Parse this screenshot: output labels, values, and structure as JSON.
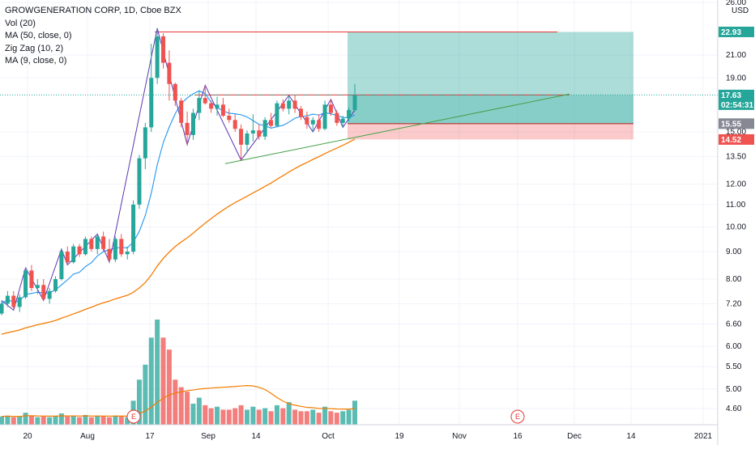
{
  "legend": {
    "title": "GROWGENERATION CORP, 1D, Cboe BZX",
    "indicators": [
      "Vol (20)",
      "MA (50, close, 0)",
      "Zig Zag (10, 2)",
      "MA (9, close, 0)"
    ]
  },
  "price_axis": {
    "unit": "USD",
    "ticks": [
      "26.00",
      "21.00",
      "19.00",
      "15.00",
      "13.50",
      "12.00",
      "11.00",
      "10.00",
      "9.00",
      "8.00",
      "7.20",
      "6.60",
      "6.00",
      "5.50",
      "5.00",
      "4.60"
    ]
  },
  "price_tags": [
    {
      "label": "22.93",
      "color": "#26a69a"
    },
    {
      "label": "17.63",
      "color": "#26a69a"
    },
    {
      "label": "02:54:31",
      "color": "#26a69a"
    },
    {
      "label": "15.55",
      "color": "#868993"
    },
    {
      "label": "14.52",
      "color": "#ef5350"
    }
  ],
  "time_axis": {
    "ticks": [
      "20",
      "Aug",
      "17",
      "Sep",
      "14",
      "Oct",
      "19",
      "Nov",
      "16",
      "Dec",
      "14",
      "2021"
    ]
  },
  "earnings_markers": [
    "E",
    "E"
  ],
  "colors": {
    "up": "#26a69a",
    "down": "#ef5350",
    "ma50": "#f57c00",
    "ma9": "#2196f3",
    "zigzag": "#5e35b1",
    "profit_zone": "#26a69a",
    "loss_zone": "#ef5350",
    "resistance": "#e53935",
    "support": "#43a047"
  },
  "chart_data": {
    "type": "candlestick",
    "symbol": "GROWGENERATION CORP",
    "interval": "1D",
    "exchange": "Cboe BZX",
    "ohlc": [
      [
        6.9,
        7.3,
        6.85,
        7.2
      ],
      [
        7.2,
        7.6,
        7.1,
        7.45
      ],
      [
        7.45,
        7.6,
        7.0,
        7.1
      ],
      [
        7.1,
        7.5,
        6.95,
        7.4
      ],
      [
        7.4,
        8.4,
        7.35,
        8.3
      ],
      [
        8.3,
        8.5,
        7.6,
        7.7
      ],
      [
        7.7,
        8.0,
        7.5,
        7.8
      ],
      [
        7.8,
        8.0,
        7.3,
        7.35
      ],
      [
        7.35,
        7.7,
        7.2,
        7.6
      ],
      [
        7.6,
        8.1,
        7.55,
        8.0
      ],
      [
        8.0,
        9.1,
        7.95,
        9.0
      ],
      [
        9.0,
        9.2,
        8.5,
        8.6
      ],
      [
        8.6,
        9.3,
        8.55,
        9.2
      ],
      [
        9.2,
        9.3,
        8.8,
        8.9
      ],
      [
        8.9,
        9.6,
        8.85,
        9.5
      ],
      [
        9.5,
        9.6,
        9.0,
        9.1
      ],
      [
        9.1,
        9.7,
        8.9,
        9.6
      ],
      [
        9.6,
        9.8,
        9.0,
        9.1
      ],
      [
        9.1,
        9.5,
        8.6,
        8.7
      ],
      [
        8.7,
        9.6,
        8.6,
        9.5
      ],
      [
        9.5,
        9.7,
        8.8,
        8.9
      ],
      [
        8.9,
        9.2,
        8.7,
        9.0
      ],
      [
        9.0,
        11.2,
        8.9,
        11.0
      ],
      [
        11.0,
        13.6,
        10.8,
        13.4
      ],
      [
        13.4,
        15.6,
        12.8,
        15.3
      ],
      [
        15.3,
        21.8,
        15.0,
        19.0
      ],
      [
        19.0,
        23.3,
        18.5,
        22.5
      ],
      [
        22.5,
        22.8,
        19.8,
        20.3
      ],
      [
        20.3,
        21.2,
        17.2,
        18.5
      ],
      [
        18.5,
        18.6,
        16.8,
        17.2
      ],
      [
        17.2,
        17.4,
        15.3,
        15.6
      ],
      [
        15.6,
        16.4,
        14.2,
        14.8
      ],
      [
        14.8,
        16.6,
        14.5,
        16.3
      ],
      [
        16.3,
        18.0,
        15.8,
        17.4
      ],
      [
        17.4,
        18.4,
        16.9,
        17.0
      ],
      [
        17.0,
        17.2,
        16.3,
        16.6
      ],
      [
        16.6,
        17.5,
        16.1,
        16.9
      ],
      [
        16.9,
        17.4,
        16.0,
        16.1
      ],
      [
        16.1,
        16.6,
        15.6,
        15.8
      ],
      [
        15.8,
        16.2,
        15.0,
        15.2
      ],
      [
        15.2,
        15.5,
        13.3,
        14.2
      ],
      [
        14.2,
        15.1,
        13.7,
        14.9
      ],
      [
        14.9,
        16.2,
        14.4,
        15.1
      ],
      [
        15.1,
        15.5,
        14.5,
        14.7
      ],
      [
        14.7,
        16.0,
        14.5,
        15.8
      ],
      [
        15.8,
        16.3,
        15.3,
        15.4
      ],
      [
        15.4,
        17.2,
        15.3,
        17.0
      ],
      [
        17.0,
        17.3,
        16.4,
        16.6
      ],
      [
        16.6,
        17.6,
        16.2,
        17.2
      ],
      [
        17.2,
        17.6,
        16.3,
        16.6
      ],
      [
        16.6,
        16.8,
        15.8,
        16.0
      ],
      [
        16.0,
        16.4,
        15.2,
        15.5
      ],
      [
        15.5,
        16.0,
        15.0,
        15.8
      ],
      [
        15.8,
        16.2,
        15.0,
        15.2
      ],
      [
        15.2,
        17.2,
        15.1,
        16.9
      ],
      [
        16.9,
        17.3,
        16.1,
        16.3
      ],
      [
        16.3,
        16.5,
        15.4,
        15.6
      ],
      [
        15.6,
        16.1,
        15.3,
        15.9
      ],
      [
        15.9,
        16.7,
        15.7,
        16.5
      ],
      [
        16.5,
        18.5,
        16.4,
        17.63
      ]
    ],
    "volume": [
      0.55,
      0.6,
      0.5,
      0.55,
      0.8,
      0.6,
      0.5,
      0.55,
      0.5,
      0.6,
      0.75,
      0.55,
      0.6,
      0.5,
      0.65,
      0.5,
      0.6,
      0.55,
      0.5,
      0.6,
      0.55,
      0.5,
      1.6,
      3.0,
      4.0,
      5.8,
      7.0,
      5.8,
      5.0,
      3.0,
      2.5,
      2.2,
      1.4,
      1.8,
      1.3,
      1.1,
      1.2,
      1.0,
      1.0,
      1.1,
      1.3,
      1.0,
      1.2,
      1.0,
      1.1,
      0.9,
      1.3,
      1.1,
      1.5,
      1.0,
      0.9,
      0.9,
      1.0,
      0.8,
      1.2,
      0.9,
      0.8,
      0.9,
      1.0,
      1.6
    ],
    "volume_ma20_label": "Vol (20)",
    "ma50_label": "MA (50, close, 0)",
    "ma9_label": "MA (9, close, 0)",
    "zigzag_label": "Zig Zag (10, 2)",
    "position": {
      "type": "long",
      "target": 22.93,
      "entry": 17.63,
      "stop": 15.55,
      "stop_zone_low": 14.52
    },
    "resistance_top": 22.93,
    "resistance_level": 17.63,
    "support_line": [
      13.1,
      17.7
    ],
    "ylim": [
      4.3,
      26.0
    ],
    "y_scale": "log"
  }
}
